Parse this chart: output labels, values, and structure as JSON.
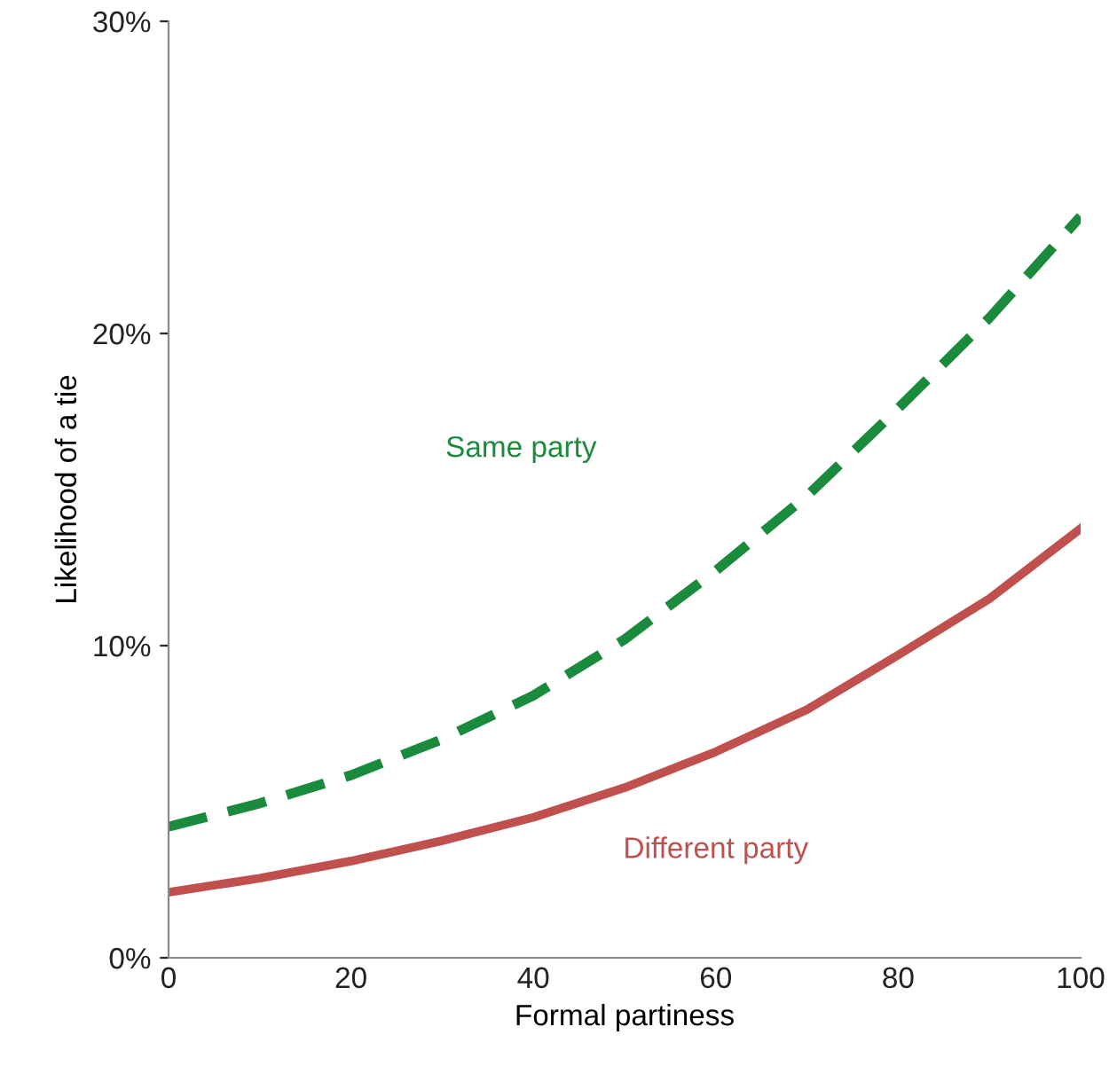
{
  "chart_data": {
    "type": "line",
    "xlabel": "Formal partiness",
    "ylabel": "Likelihood of a tie",
    "x": [
      0,
      10,
      20,
      30,
      40,
      50,
      60,
      70,
      80,
      90,
      100
    ],
    "series": [
      {
        "name": "Same party",
        "color": "#1a8a3c",
        "line_style": "dashed",
        "values": [
          4.2,
          4.95,
          5.85,
          7.0,
          8.4,
          10.2,
          12.4,
          14.8,
          17.6,
          20.5,
          23.75
        ]
      },
      {
        "name": "Different party",
        "color": "#c0504d",
        "line_style": "solid",
        "values": [
          2.1,
          2.55,
          3.1,
          3.75,
          4.5,
          5.45,
          6.6,
          7.95,
          9.7,
          11.5,
          13.75
        ]
      }
    ],
    "xlim": [
      0,
      100
    ],
    "xticks": [
      0,
      20,
      40,
      60,
      80,
      100
    ],
    "ylim": [
      0,
      30
    ],
    "yticks": [
      {
        "value": 0,
        "label": "0%"
      },
      {
        "value": 10,
        "label": "10%"
      },
      {
        "value": 20,
        "label": "20%"
      },
      {
        "value": 30,
        "label": "30%"
      }
    ],
    "grid": false,
    "legend": false,
    "marker": "none"
  }
}
